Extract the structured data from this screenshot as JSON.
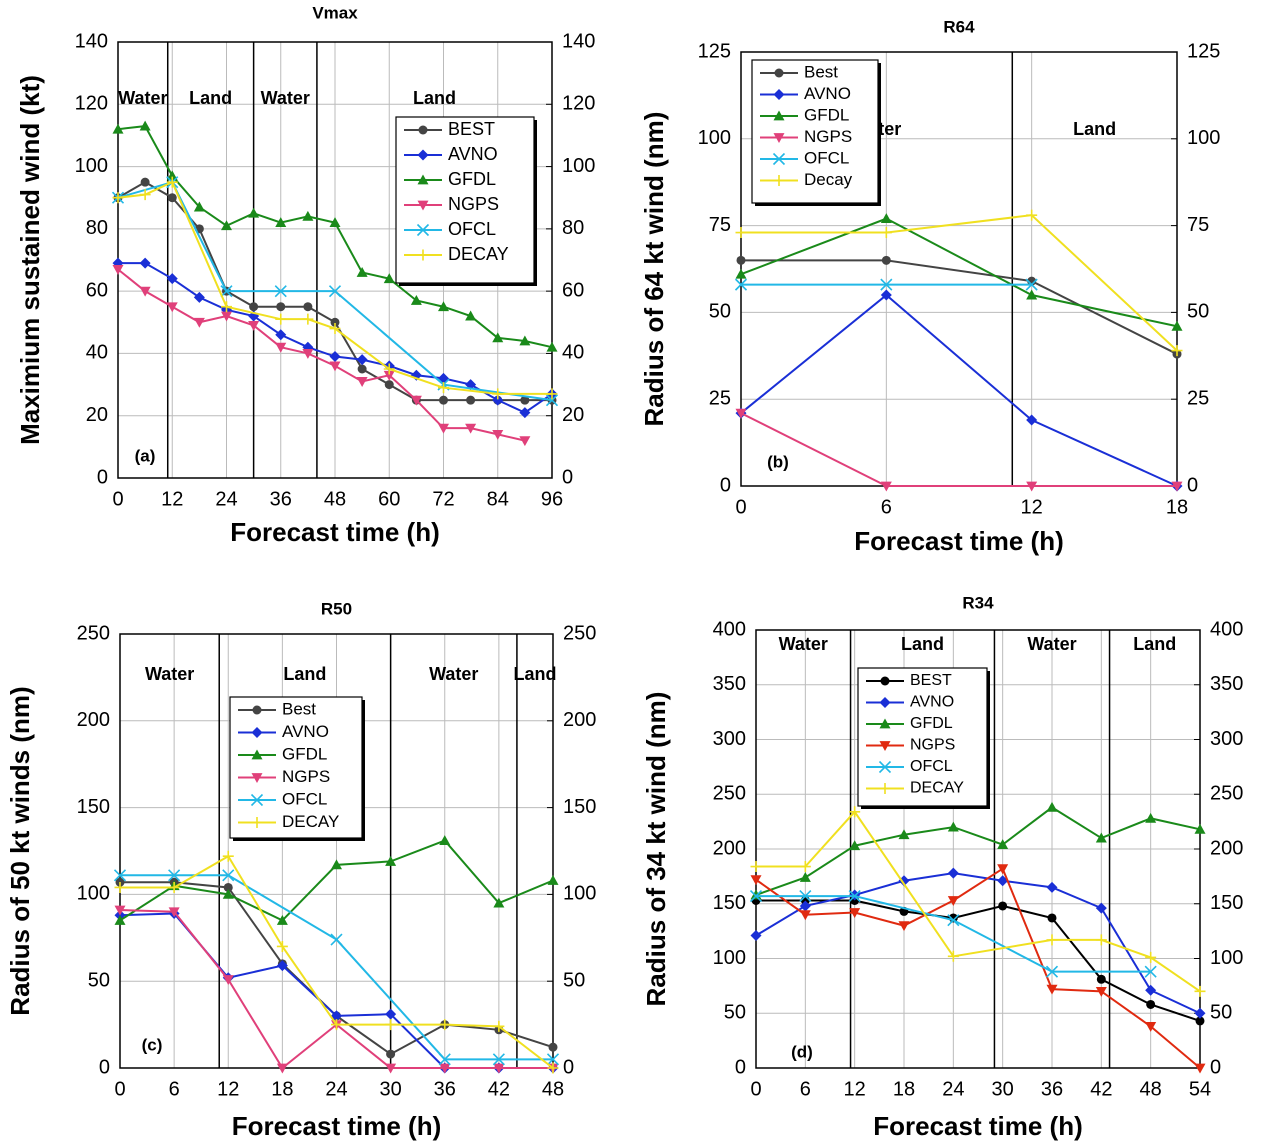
{
  "chart_data": [
    {
      "type": "line",
      "title": "Vmax",
      "panel_label": "(a)",
      "x_label": "Forecast time (h)",
      "y_label": "Maximium sustained wind (kt)",
      "xlim": [
        0,
        96
      ],
      "xticks": [
        0,
        12,
        24,
        36,
        48,
        60,
        72,
        84,
        96
      ],
      "ylim": [
        0,
        140
      ],
      "yticks": [
        0,
        20,
        40,
        60,
        80,
        100,
        120,
        140
      ],
      "y2lim": [
        0,
        140
      ],
      "y2ticks": [
        0,
        20,
        40,
        60,
        80,
        100,
        120,
        140
      ],
      "grid": true,
      "dividers": [
        11,
        30,
        44
      ],
      "region_labels": [
        "Water",
        "Land",
        "Water",
        "Land"
      ],
      "series": [
        {
          "name": "BEST",
          "color": "#444444",
          "marker": "circle",
          "x": [
            0,
            6,
            12,
            18,
            24,
            30,
            36,
            42,
            48,
            54,
            60,
            66,
            72,
            78,
            84,
            90,
            96
          ],
          "values": [
            90,
            95,
            90,
            80,
            60,
            55,
            55,
            55,
            50,
            35,
            30,
            25,
            25,
            25,
            25,
            25,
            25
          ]
        },
        {
          "name": "AVNO",
          "color": "#1a2fd6",
          "marker": "diamond",
          "x": [
            0,
            6,
            12,
            18,
            24,
            30,
            36,
            42,
            48,
            54,
            60,
            66,
            72,
            78,
            84,
            90,
            96
          ],
          "values": [
            69,
            69,
            64,
            58,
            54,
            52,
            46,
            42,
            39,
            38,
            36,
            33,
            32,
            30,
            25,
            21,
            27
          ]
        },
        {
          "name": "GFDL",
          "color": "#1a8a1a",
          "marker": "tri-up",
          "x": [
            0,
            6,
            12,
            18,
            24,
            30,
            36,
            42,
            48,
            54,
            60,
            66,
            72,
            78,
            84,
            90,
            96
          ],
          "values": [
            112,
            113,
            97,
            87,
            81,
            85,
            82,
            84,
            82,
            66,
            64,
            57,
            55,
            52,
            45,
            44,
            42
          ]
        },
        {
          "name": "NGPS",
          "color": "#e0407a",
          "marker": "tri-down",
          "x": [
            0,
            6,
            12,
            18,
            24,
            30,
            36,
            42,
            48,
            54,
            60,
            66,
            72,
            78,
            84,
            90
          ],
          "values": [
            67,
            60,
            55,
            50,
            52,
            49,
            42,
            40,
            36,
            31,
            33,
            25,
            16,
            16,
            14,
            12
          ]
        },
        {
          "name": "OFCL",
          "color": "#22b8e6",
          "marker": "cross",
          "x": [
            0,
            12,
            24,
            36,
            48,
            72,
            96
          ],
          "values": [
            90,
            95,
            60,
            60,
            60,
            30,
            25
          ]
        },
        {
          "name": "DECAY",
          "color": "#f0e020",
          "marker": "plus",
          "x": [
            0,
            6,
            12,
            24,
            36,
            42,
            48,
            60,
            72,
            84,
            96
          ],
          "values": [
            90,
            91,
            95,
            55,
            51,
            51,
            48,
            35,
            29,
            27,
            27
          ]
        }
      ]
    },
    {
      "type": "line",
      "title": "R64",
      "panel_label": "(b)",
      "x_label": "Forecast time (h)",
      "y_label": "Radius of 64 kt wind (nm)",
      "xlim": [
        0,
        18
      ],
      "xticks": [
        0,
        6,
        12,
        18
      ],
      "ylim": [
        0,
        125
      ],
      "yticks": [
        0,
        25,
        50,
        75,
        100,
        125
      ],
      "y2lim": [
        0,
        125
      ],
      "y2ticks": [
        0,
        25,
        50,
        75,
        100,
        125
      ],
      "grid": true,
      "dividers": [
        11.2
      ],
      "region_labels": [
        "Water",
        "Land"
      ],
      "series": [
        {
          "name": "Best",
          "color": "#444444",
          "marker": "circle",
          "x": [
            0,
            6,
            12,
            18
          ],
          "values": [
            65,
            65,
            59,
            38
          ]
        },
        {
          "name": "AVNO",
          "color": "#1a2fd6",
          "marker": "diamond",
          "x": [
            0,
            6,
            12,
            18
          ],
          "values": [
            21,
            55,
            19,
            0
          ]
        },
        {
          "name": "GFDL",
          "color": "#1a8a1a",
          "marker": "tri-up",
          "x": [
            0,
            6,
            12,
            18
          ],
          "values": [
            61,
            77,
            55,
            46
          ]
        },
        {
          "name": "NGPS",
          "color": "#e0407a",
          "marker": "tri-down",
          "x": [
            0,
            6,
            12,
            18
          ],
          "values": [
            21,
            0,
            0,
            0
          ]
        },
        {
          "name": "OFCL",
          "color": "#22b8e6",
          "marker": "cross",
          "x": [
            0,
            6,
            12
          ],
          "values": [
            58,
            58,
            58
          ]
        },
        {
          "name": "Decay",
          "color": "#f0e020",
          "marker": "plus",
          "x": [
            0,
            6,
            12,
            18
          ],
          "values": [
            73,
            73,
            78,
            39
          ]
        }
      ]
    },
    {
      "type": "line",
      "title": "R50",
      "panel_label": "(c)",
      "x_label": "Forecast time (h)",
      "y_label": "Radius of 50 kt winds (nm)",
      "xlim": [
        0,
        48
      ],
      "xticks": [
        0,
        6,
        12,
        18,
        24,
        30,
        36,
        42,
        48
      ],
      "ylim": [
        0,
        250
      ],
      "yticks": [
        0,
        50,
        100,
        150,
        200,
        250
      ],
      "y2lim": [
        0,
        250
      ],
      "y2ticks": [
        0,
        50,
        100,
        150,
        200,
        250
      ],
      "grid": true,
      "dividers": [
        11,
        30,
        44
      ],
      "region_labels": [
        "Water",
        "Land",
        "Water",
        "Land"
      ],
      "series": [
        {
          "name": "Best",
          "color": "#444444",
          "marker": "circle",
          "x": [
            0,
            6,
            12,
            18,
            24,
            30,
            36,
            42,
            48
          ],
          "values": [
            107,
            107,
            104,
            60,
            30,
            8,
            25,
            22,
            12
          ]
        },
        {
          "name": "AVNO",
          "color": "#1a2fd6",
          "marker": "diamond",
          "x": [
            0,
            6,
            12,
            18,
            24,
            30,
            36,
            42,
            48
          ],
          "values": [
            88,
            89,
            52,
            59,
            30,
            31,
            0,
            0,
            0
          ]
        },
        {
          "name": "GFDL",
          "color": "#1a8a1a",
          "marker": "tri-up",
          "x": [
            0,
            6,
            12,
            18,
            24,
            30,
            36,
            42,
            48
          ],
          "values": [
            85,
            105,
            100,
            85,
            117,
            119,
            131,
            95,
            108
          ]
        },
        {
          "name": "NGPS",
          "color": "#e0407a",
          "marker": "tri-down",
          "x": [
            0,
            6,
            12,
            18,
            24,
            30,
            36,
            42,
            48
          ],
          "values": [
            91,
            90,
            51,
            0,
            25,
            0,
            0,
            0,
            0
          ]
        },
        {
          "name": "OFCL",
          "color": "#22b8e6",
          "marker": "cross",
          "x": [
            0,
            6,
            12,
            24,
            36,
            42,
            48
          ],
          "values": [
            111,
            111,
            111,
            74,
            5,
            5,
            5
          ]
        },
        {
          "name": "DECAY",
          "color": "#f0e020",
          "marker": "plus",
          "x": [
            0,
            6,
            12,
            18,
            24,
            30,
            36,
            42,
            48
          ],
          "values": [
            104,
            104,
            122,
            70,
            25,
            25,
            25,
            24,
            0
          ]
        }
      ]
    },
    {
      "type": "line",
      "title": "R34",
      "panel_label": "(d)",
      "x_label": "Forecast time (h)",
      "y_label": "Radius of 34 kt wind (nm)",
      "xlim": [
        0,
        54
      ],
      "xticks": [
        0,
        6,
        12,
        18,
        24,
        30,
        36,
        42,
        48,
        54
      ],
      "ylim": [
        0,
        400
      ],
      "yticks": [
        0,
        50,
        100,
        150,
        200,
        250,
        300,
        350,
        400
      ],
      "y2lim": [
        0,
        400
      ],
      "y2ticks": [
        0,
        50,
        100,
        150,
        200,
        250,
        300,
        350,
        400
      ],
      "grid": true,
      "dividers": [
        11.5,
        29,
        43
      ],
      "region_labels": [
        "Water",
        "Land",
        "Water",
        "Land"
      ],
      "series": [
        {
          "name": "BEST",
          "color": "#000000",
          "marker": "circle",
          "x": [
            0,
            6,
            12,
            18,
            24,
            30,
            36,
            42,
            48,
            54
          ],
          "values": [
            153,
            153,
            153,
            143,
            137,
            148,
            137,
            81,
            58,
            43
          ]
        },
        {
          "name": "AVNO",
          "color": "#1a2fd6",
          "marker": "diamond",
          "x": [
            0,
            6,
            12,
            18,
            24,
            30,
            36,
            42,
            48,
            54
          ],
          "values": [
            121,
            148,
            158,
            171,
            178,
            171,
            165,
            146,
            71,
            50
          ]
        },
        {
          "name": "GFDL",
          "color": "#1a8a1a",
          "marker": "tri-up",
          "x": [
            0,
            6,
            12,
            18,
            24,
            30,
            36,
            42,
            48,
            54
          ],
          "values": [
            158,
            174,
            203,
            213,
            220,
            204,
            238,
            210,
            228,
            218
          ]
        },
        {
          "name": "NGPS",
          "color": "#e02a10",
          "marker": "tri-down",
          "x": [
            0,
            6,
            12,
            18,
            24,
            30,
            36,
            42,
            48,
            54
          ],
          "values": [
            172,
            140,
            142,
            130,
            153,
            182,
            72,
            70,
            38,
            0
          ]
        },
        {
          "name": "OFCL",
          "color": "#22b8e6",
          "marker": "cross",
          "x": [
            0,
            6,
            12,
            24,
            36,
            48
          ],
          "values": [
            157,
            157,
            157,
            135,
            88,
            88
          ]
        },
        {
          "name": "DECAY",
          "color": "#f0e020",
          "marker": "plus",
          "x": [
            0,
            6,
            12,
            24,
            36,
            42,
            48,
            54
          ],
          "values": [
            184,
            184,
            234,
            102,
            117,
            117,
            101,
            70
          ]
        }
      ]
    }
  ]
}
